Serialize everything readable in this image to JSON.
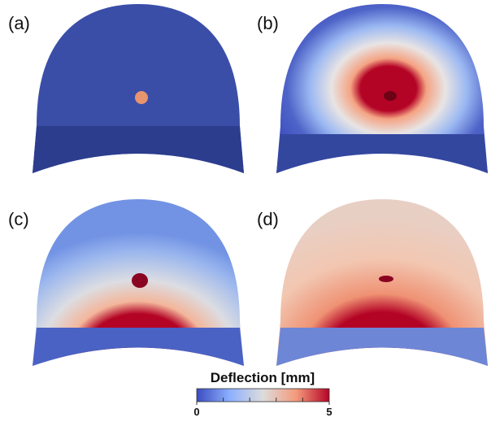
{
  "panels": [
    {
      "label": "(a)"
    },
    {
      "label": "(b)"
    },
    {
      "label": "(c)"
    },
    {
      "label": "(d)"
    }
  ],
  "colorbar": {
    "title": "Deflection [mm]",
    "range": [
      0,
      5
    ],
    "ticks": [
      0,
      5
    ],
    "minor_ticks": [
      1,
      2,
      3,
      4
    ],
    "colors": [
      "#3b4cc0",
      "#8db0fe",
      "#dddcdc",
      "#f49a7b",
      "#b40426"
    ]
  }
}
